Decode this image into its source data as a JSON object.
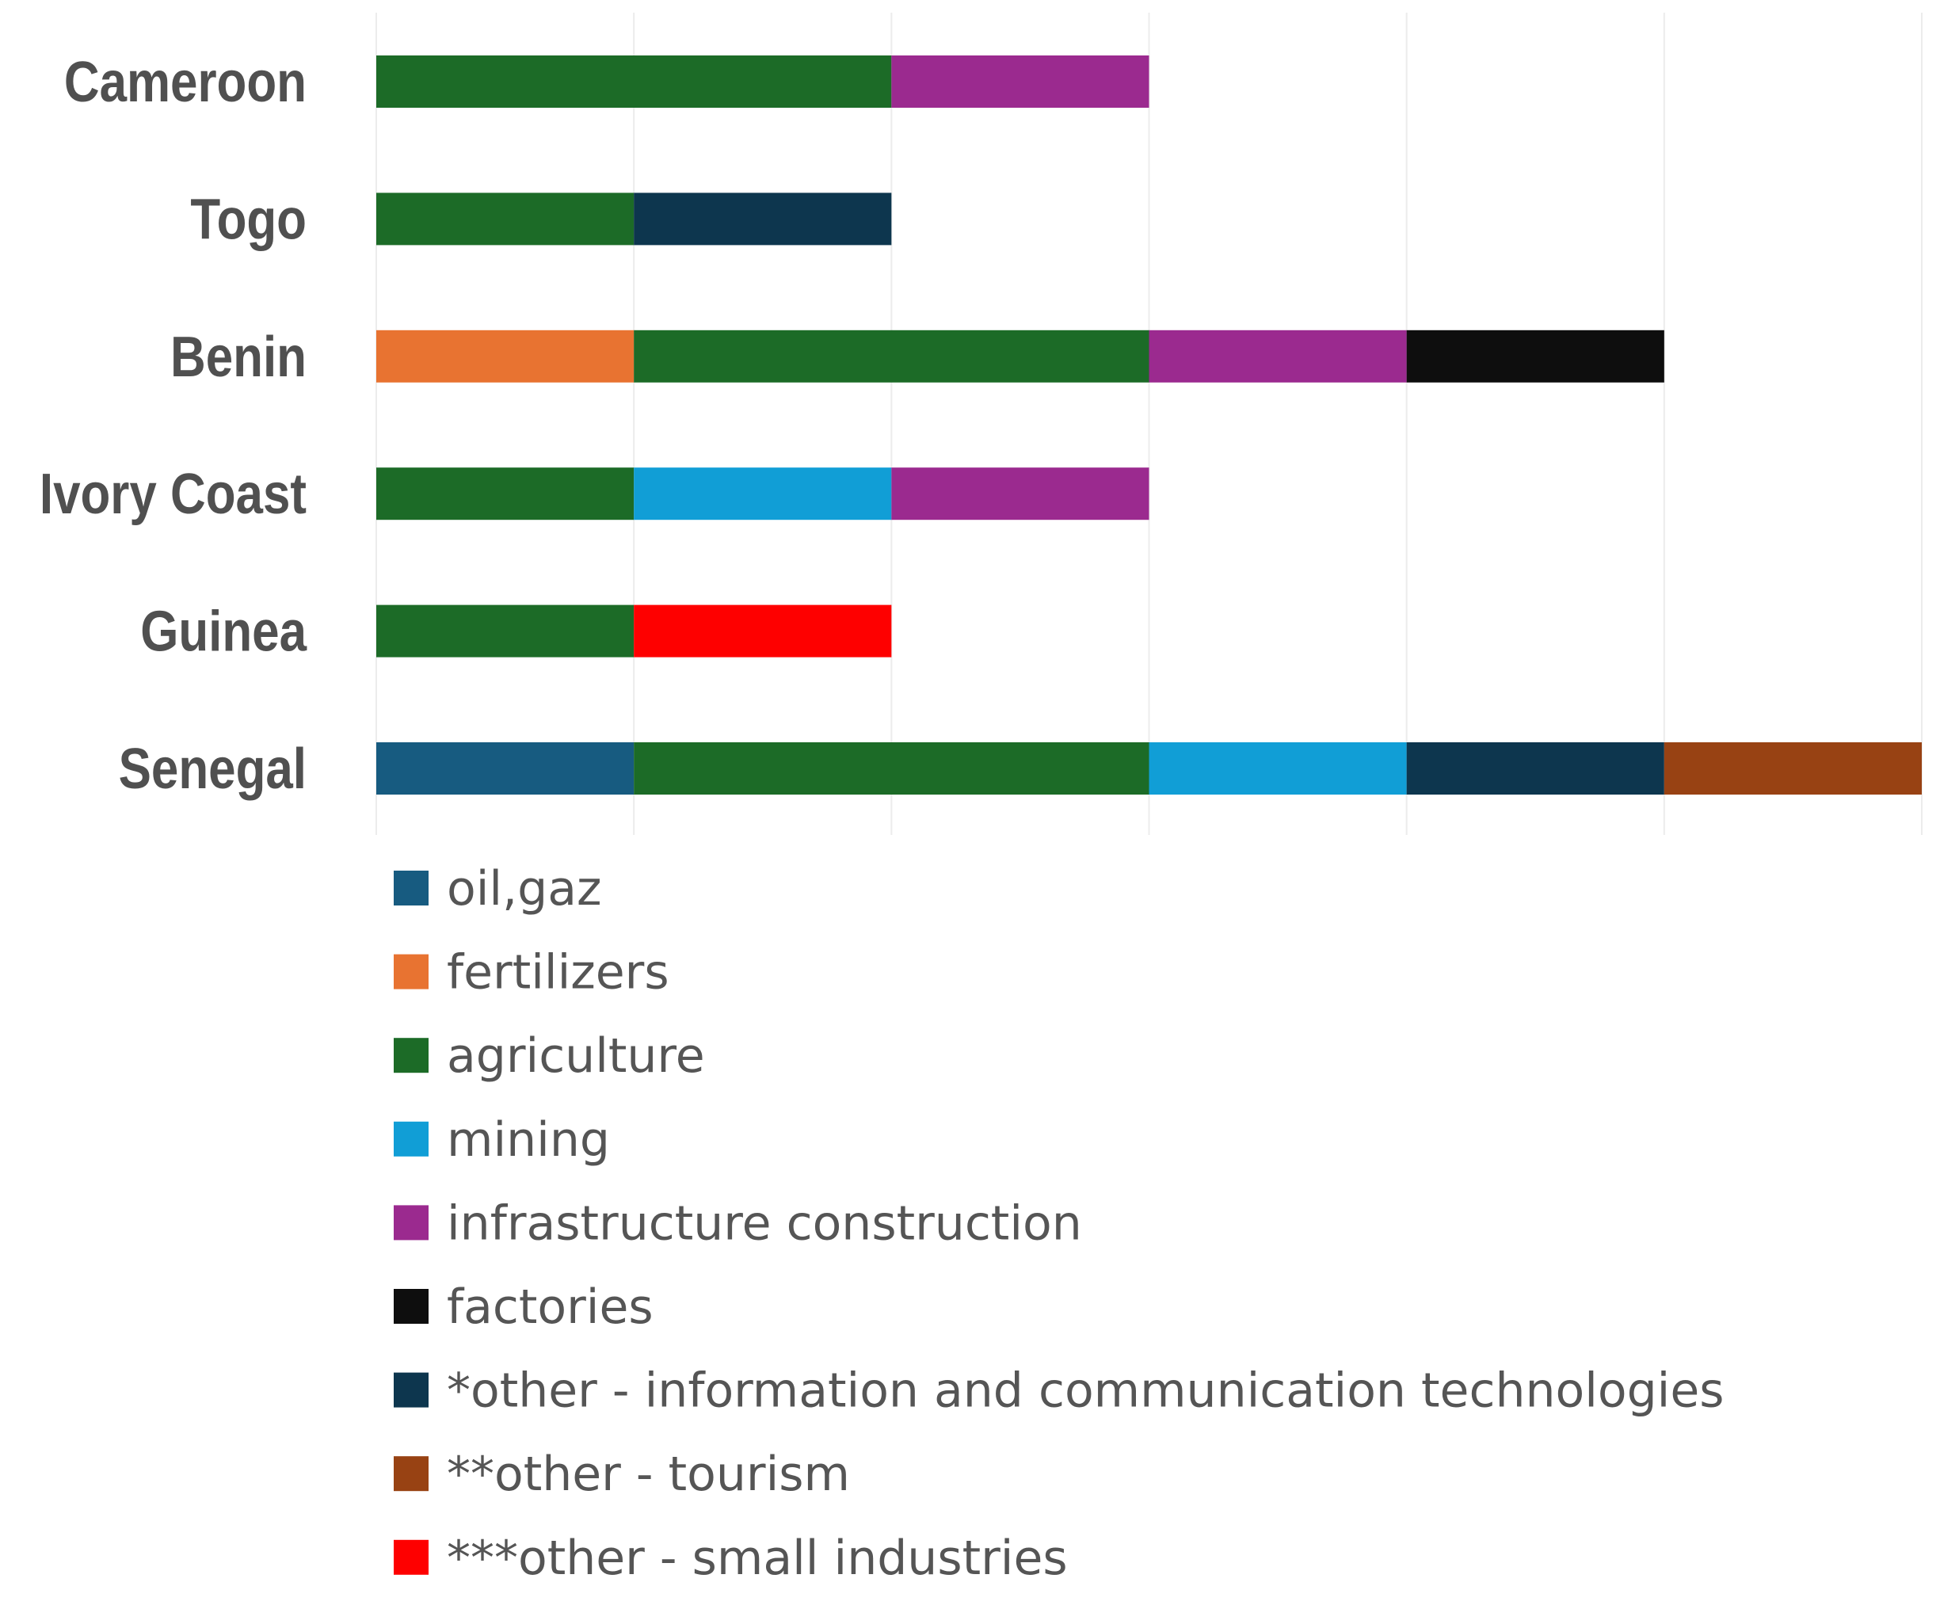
{
  "chart_data": {
    "type": "bar",
    "orientation": "horizontal",
    "stacked": true,
    "categories": [
      "Cameroon",
      "Togo",
      "Benin",
      "Ivory Coast",
      "Guinea",
      "Senegal"
    ],
    "xlim": [
      0,
      6
    ],
    "grid": true,
    "x_tick_labels_shown": false,
    "legend_position": "bottom",
    "series": [
      {
        "name": "oil,gaz",
        "color": "#175b80",
        "values": [
          0,
          0,
          0,
          0,
          0,
          1
        ]
      },
      {
        "name": "fertilizers",
        "color": "#e87331",
        "values": [
          0,
          0,
          1,
          0,
          0,
          0
        ]
      },
      {
        "name": "agriculture",
        "color": "#1c6b27",
        "values": [
          2,
          1,
          2,
          1,
          1,
          2
        ]
      },
      {
        "name": "mining",
        "color": "#119ed6",
        "values": [
          0,
          0,
          0,
          1,
          0,
          1
        ]
      },
      {
        "name": "infrastructure construction",
        "color": "#9b2a8f",
        "values": [
          1,
          0,
          1,
          1,
          0,
          0
        ]
      },
      {
        "name": "factories",
        "color": "#0e0e0e",
        "values": [
          0,
          0,
          1,
          0,
          0,
          0
        ]
      },
      {
        "name": "*other - information and communication technologies",
        "color": "#0d364e",
        "values": [
          0,
          1,
          0,
          0,
          0,
          1
        ]
      },
      {
        "name": "**other - tourism",
        "color": "#984213",
        "values": [
          0,
          0,
          0,
          0,
          0,
          1
        ]
      },
      {
        "name": "***other - small industries",
        "color": "#fe0000",
        "values": [
          0,
          0,
          0,
          0,
          1,
          0
        ]
      }
    ]
  }
}
